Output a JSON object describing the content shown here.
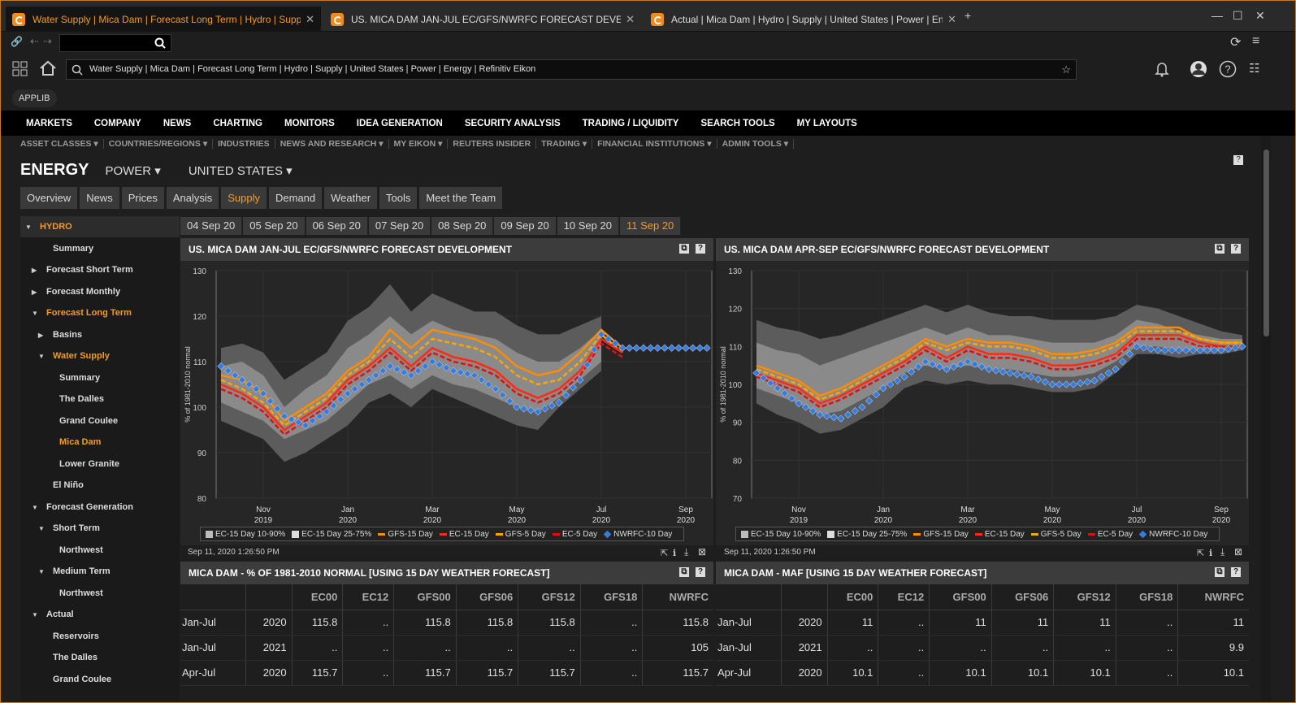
{
  "tabs": [
    {
      "title": "Water Supply | Mica Dam | Forecast Long Term | Hydro | Supply | U"
    },
    {
      "title": "US. MICA DAM JAN-JUL EC/GFS/NWRFC FORECAST DEVELOPME"
    },
    {
      "title": "Actual | Mica Dam | Hydro | Supply | United States | Power | Energy"
    }
  ],
  "url": "Water Supply | Mica Dam | Forecast Long Term | Hydro | Supply | United States | Power | Energy | Refinitiv Eikon",
  "applib": "APPLIB",
  "main_menu": [
    "MARKETS",
    "COMPANY",
    "NEWS",
    "CHARTING",
    "MONITORS",
    "IDEA GENERATION",
    "SECURITY ANALYSIS",
    "TRADING / LIQUIDITY",
    "SEARCH TOOLS",
    "MY LAYOUTS"
  ],
  "sub_menu": [
    "ASSET CLASSES ▾",
    "COUNTRIES/REGIONS ▾",
    "INDUSTRIES",
    "NEWS AND RESEARCH ▾",
    "MY EIKON ▾",
    "REUTERS INSIDER",
    "TRADING ▾",
    "FINANCIAL INSTITUTIONS ▾",
    "ADMIN TOOLS ▾"
  ],
  "heading": {
    "title": "ENERGY",
    "power": "POWER ▾",
    "country": "UNITED STATES ▾"
  },
  "subtabs": [
    "Overview",
    "News",
    "Prices",
    "Analysis",
    "Supply",
    "Demand",
    "Weather",
    "Tools",
    "Meet the Team"
  ],
  "sidebar": [
    {
      "label": "HYDRO",
      "arrow": "▼",
      "indent": 0,
      "orange": true
    },
    {
      "label": "Summary",
      "arrow": "",
      "indent": 2,
      "orange": false
    },
    {
      "label": "Forecast Short Term",
      "arrow": "▶",
      "indent": 1,
      "orange": false
    },
    {
      "label": "Forecast Monthly",
      "arrow": "▶",
      "indent": 1,
      "orange": false
    },
    {
      "label": "Forecast Long Term",
      "arrow": "▼",
      "indent": 1,
      "orange": true
    },
    {
      "label": "Basins",
      "arrow": "▶",
      "indent": 2,
      "orange": false
    },
    {
      "label": "Water Supply",
      "arrow": "▼",
      "indent": 2,
      "orange": true
    },
    {
      "label": "Summary",
      "arrow": "",
      "indent": 3,
      "orange": false
    },
    {
      "label": "The Dalles",
      "arrow": "",
      "indent": 3,
      "orange": false
    },
    {
      "label": "Grand Coulee",
      "arrow": "",
      "indent": 3,
      "orange": false
    },
    {
      "label": "Mica Dam",
      "arrow": "",
      "indent": 3,
      "orange": true
    },
    {
      "label": "Lower Granite",
      "arrow": "",
      "indent": 3,
      "orange": false
    },
    {
      "label": "El Niño",
      "arrow": "",
      "indent": 2,
      "orange": false
    },
    {
      "label": "Forecast Generation",
      "arrow": "▼",
      "indent": 1,
      "orange": false
    },
    {
      "label": "Short Term",
      "arrow": "▼",
      "indent": 2,
      "orange": false
    },
    {
      "label": "Northwest",
      "arrow": "",
      "indent": 3,
      "orange": false
    },
    {
      "label": "Medium Term",
      "arrow": "▼",
      "indent": 2,
      "orange": false
    },
    {
      "label": "Northwest",
      "arrow": "",
      "indent": 3,
      "orange": false
    },
    {
      "label": "Actual",
      "arrow": "▼",
      "indent": 1,
      "orange": false
    },
    {
      "label": "Reservoirs",
      "arrow": "",
      "indent": 2,
      "orange": false
    },
    {
      "label": "The Dalles",
      "arrow": "",
      "indent": 2,
      "orange": false
    },
    {
      "label": "Grand Coulee",
      "arrow": "",
      "indent": 2,
      "orange": false
    }
  ],
  "dates": [
    "04 Sep 20",
    "05 Sep 20",
    "06 Sep 20",
    "07 Sep 20",
    "08 Sep 20",
    "09 Sep 20",
    "10 Sep 20",
    "11 Sep 20"
  ],
  "legend": [
    "EC-15 Day 10-90%",
    "EC-15 Day 25-75%",
    "GFS-15 Day",
    "EC-15 Day",
    "GFS-5 Day",
    "EC-5 Day",
    "NWRFC-10 Day"
  ],
  "colors": {
    "accent": "#f49a26",
    "gfs15": "#ff8c00",
    "ec15": "#ff2a10",
    "gfs5": "#ffa500",
    "ec5": "#e01010",
    "nwrfc": "#3a7bd5",
    "band1": "#6a6a6a",
    "band2": "#9a9a9a"
  },
  "chart_data": [
    {
      "type": "line",
      "title": "US. MICA DAM JAN-JUL EC/GFS/NWRFC FORECAST DEVELOPMENT",
      "ylabel": "% of 1981-2010 normal",
      "ylim": [
        80,
        130
      ],
      "yticks": [
        80,
        90,
        100,
        110,
        120,
        130
      ],
      "xticks": [
        {
          "top": "Nov",
          "bottom": "2019"
        },
        {
          "top": "Jan",
          "bottom": "2020"
        },
        {
          "top": "Mar",
          "bottom": "2020"
        },
        {
          "top": "May",
          "bottom": "2020"
        },
        {
          "top": "Jul",
          "bottom": "2020"
        },
        {
          "top": "Sep",
          "bottom": "2020"
        }
      ],
      "x": [
        "Oct-01",
        "Oct-15",
        "Nov-01",
        "Nov-15",
        "Dec-01",
        "Dec-15",
        "Jan-01",
        "Jan-15",
        "Feb-01",
        "Feb-15",
        "Mar-01",
        "Mar-15",
        "Apr-01",
        "Apr-15",
        "May-01",
        "May-15",
        "Jun-01",
        "Jun-15",
        "Jul-01",
        "Jul-15",
        "Aug-01",
        "Aug-15",
        "Sep-01",
        "Sep-11"
      ],
      "series": [
        {
          "name": "EC-15 Day 10-90%",
          "low": [
            97,
            95,
            93,
            88,
            90,
            93,
            96,
            101,
            103,
            100,
            104,
            102,
            100,
            98,
            96,
            95,
            100,
            104,
            108,
            null,
            null,
            null,
            null,
            null
          ],
          "high": [
            113,
            114,
            112,
            106,
            109,
            112,
            119,
            122,
            127,
            121,
            125,
            123,
            121,
            121,
            118,
            116,
            116,
            118,
            120,
            null,
            null,
            null,
            null,
            null
          ]
        },
        {
          "name": "EC-15 Day 25-75%",
          "low": [
            101,
            99,
            97,
            93,
            95,
            97,
            101,
            105,
            107,
            104,
            107,
            105,
            104,
            102,
            100,
            99,
            102,
            106,
            110,
            null,
            null,
            null,
            null,
            null
          ],
          "high": [
            109,
            110,
            107,
            100,
            104,
            107,
            113,
            116,
            120,
            116,
            119,
            117,
            116,
            115,
            112,
            110,
            110,
            113,
            117,
            null,
            null,
            null,
            null,
            null
          ]
        },
        {
          "name": "GFS-15 Day",
          "values": [
            107,
            106,
            103,
            97,
            100,
            103,
            108,
            111,
            117,
            113,
            117,
            116,
            115,
            113,
            109,
            107,
            108,
            112,
            117,
            113,
            null,
            null,
            null,
            null
          ]
        },
        {
          "name": "EC-15 Day",
          "values": [
            105,
            103,
            100,
            95,
            98,
            101,
            106,
            109,
            113,
            109,
            113,
            111,
            110,
            108,
            104,
            102,
            104,
            108,
            115,
            112,
            null,
            null,
            null,
            null
          ]
        },
        {
          "name": "GFS-5 Day",
          "values": [
            106,
            104,
            101,
            96,
            99,
            102,
            107,
            110,
            115,
            111,
            115,
            114,
            113,
            111,
            107,
            105,
            106,
            110,
            116,
            112,
            null,
            null,
            null,
            null
          ]
        },
        {
          "name": "EC-5 Day",
          "values": [
            104,
            102,
            99,
            94,
            97,
            100,
            105,
            108,
            112,
            108,
            112,
            110,
            109,
            107,
            103,
            101,
            103,
            107,
            114,
            111,
            null,
            null,
            null,
            null
          ]
        },
        {
          "name": "NWRFC-10 Day",
          "values": [
            109,
            106,
            103,
            98,
            96,
            99,
            103,
            106,
            109,
            107,
            110,
            108,
            107,
            104,
            100,
            99,
            101,
            106,
            116,
            113,
            113,
            113,
            113,
            113
          ]
        }
      ]
    },
    {
      "type": "line",
      "title": "US. MICA DAM APR-SEP EC/GFS/NWRFC FORECAST DEVELOPMENT",
      "ylabel": "% of 1981-2010 normal",
      "ylim": [
        70,
        130
      ],
      "yticks": [
        70,
        80,
        90,
        100,
        110,
        120,
        130
      ],
      "xticks": [
        {
          "top": "Nov",
          "bottom": "2019"
        },
        {
          "top": "Jan",
          "bottom": "2020"
        },
        {
          "top": "Mar",
          "bottom": "2020"
        },
        {
          "top": "May",
          "bottom": "2020"
        },
        {
          "top": "Jul",
          "bottom": "2020"
        },
        {
          "top": "Sep",
          "bottom": "2020"
        }
      ],
      "x": [
        "Oct-01",
        "Oct-15",
        "Nov-01",
        "Nov-15",
        "Dec-01",
        "Dec-15",
        "Jan-01",
        "Jan-15",
        "Feb-01",
        "Feb-15",
        "Mar-01",
        "Mar-15",
        "Apr-01",
        "Apr-15",
        "May-01",
        "May-15",
        "Jun-01",
        "Jun-15",
        "Jul-01",
        "Jul-15",
        "Aug-01",
        "Aug-15",
        "Sep-01",
        "Sep-11"
      ],
      "series": [
        {
          "name": "EC-15 Day 10-90%",
          "low": [
            95,
            92,
            90,
            87,
            88,
            91,
            94,
            99,
            101,
            100,
            101,
            100,
            100,
            99,
            98,
            98,
            99,
            103,
            108,
            108,
            107,
            108,
            108,
            109
          ]
        },
        {
          "name": "EC-15 Day 10-90% high",
          "high": [
            117,
            115,
            114,
            112,
            113,
            115,
            117,
            119,
            121,
            119,
            121,
            119,
            118,
            118,
            117,
            117,
            117,
            118,
            121,
            120,
            118,
            116,
            114,
            113
          ]
        },
        {
          "name": "EC-15 Day 25-75%",
          "low": [
            99,
            97,
            95,
            92,
            93,
            96,
            99,
            103,
            105,
            104,
            105,
            104,
            104,
            103,
            102,
            102,
            103,
            106,
            110,
            110,
            109,
            109,
            109,
            110
          ],
          "high": [
            111,
            109,
            108,
            105,
            107,
            109,
            111,
            113,
            115,
            113,
            115,
            113,
            113,
            112,
            111,
            111,
            111,
            113,
            117,
            116,
            114,
            113,
            112,
            112
          ]
        },
        {
          "name": "GFS-15 Day",
          "values": [
            105,
            103,
            101,
            97,
            99,
            102,
            105,
            108,
            112,
            110,
            112,
            111,
            111,
            110,
            108,
            108,
            109,
            111,
            115,
            115,
            115,
            112,
            111,
            111
          ]
        },
        {
          "name": "EC-15 Day",
          "values": [
            103,
            101,
            99,
            95,
            97,
            100,
            103,
            106,
            110,
            107,
            110,
            108,
            108,
            107,
            105,
            105,
            106,
            108,
            113,
            113,
            113,
            111,
            110,
            110
          ]
        },
        {
          "name": "GFS-5 Day",
          "values": [
            104,
            102,
            100,
            96,
            98,
            101,
            104,
            107,
            111,
            109,
            111,
            110,
            110,
            109,
            107,
            107,
            108,
            110,
            114,
            114,
            114,
            112,
            111,
            111
          ]
        },
        {
          "name": "EC-5 Day",
          "values": [
            102,
            100,
            98,
            94,
            96,
            99,
            102,
            105,
            109,
            106,
            109,
            107,
            107,
            106,
            104,
            104,
            105,
            107,
            112,
            112,
            112,
            110,
            110,
            110
          ]
        },
        {
          "name": "NWRFC-10 Day",
          "values": [
            103,
            99,
            95,
            92,
            91,
            94,
            99,
            102,
            106,
            104,
            106,
            104,
            103,
            102,
            100,
            100,
            101,
            104,
            110,
            109,
            109,
            109,
            109,
            110
          ]
        }
      ]
    }
  ],
  "stamps": [
    "Sep 11, 2020 1:26:50 PM",
    "Sep 11, 2020 1:26:50 PM"
  ],
  "table_left": {
    "title": "MICA DAM - % OF 1981-2010 NORMAL [USING 15 DAY WEATHER FORECAST]",
    "headers": [
      "",
      "",
      "EC00",
      "EC12",
      "GFS00",
      "GFS06",
      "GFS12",
      "GFS18",
      "NWRFC"
    ],
    "rows": [
      [
        "Jan-Jul",
        "2020",
        "115.8",
        "..",
        "115.8",
        "115.8",
        "115.8",
        "..",
        "115.8"
      ],
      [
        "Jan-Jul",
        "2021",
        "..",
        "..",
        "..",
        "..",
        "..",
        "..",
        "105"
      ],
      [
        "Apr-Jul",
        "2020",
        "115.7",
        "..",
        "115.7",
        "115.7",
        "115.7",
        "..",
        "115.7"
      ]
    ]
  },
  "table_right": {
    "title": "MICA DAM - MAF [USING 15 DAY WEATHER FORECAST]",
    "headers": [
      "",
      "",
      "EC00",
      "EC12",
      "GFS00",
      "GFS06",
      "GFS12",
      "GFS18",
      "NWRFC"
    ],
    "rows": [
      [
        "Jan-Jul",
        "2020",
        "11",
        "..",
        "11",
        "11",
        "11",
        "..",
        "11"
      ],
      [
        "Jan-Jul",
        "2021",
        "..",
        "..",
        "..",
        "..",
        "..",
        "..",
        "9.9"
      ],
      [
        "Apr-Jul",
        "2020",
        "10.1",
        "..",
        "10.1",
        "10.1",
        "10.1",
        "..",
        "10.1"
      ]
    ]
  }
}
